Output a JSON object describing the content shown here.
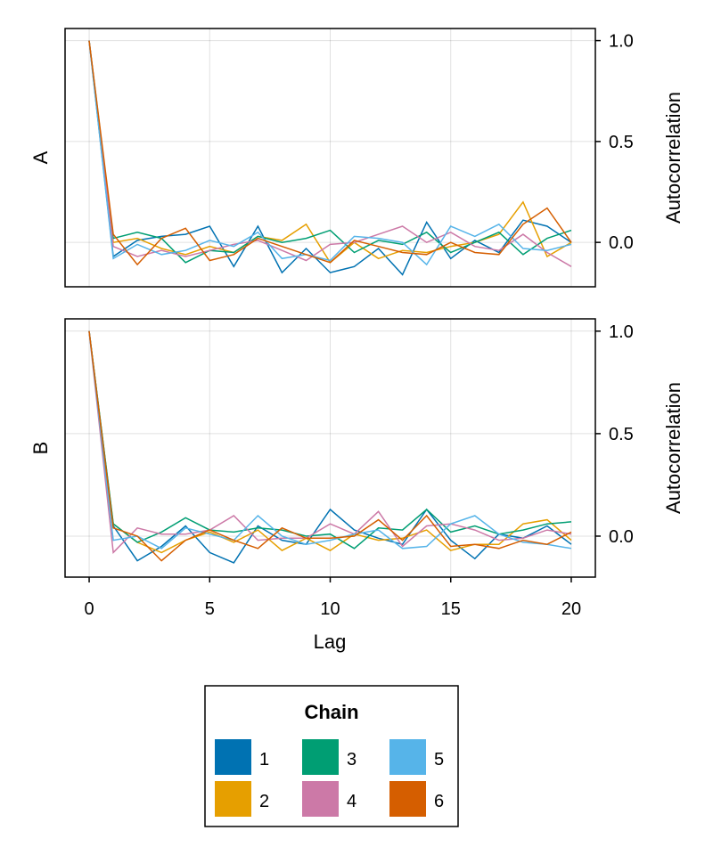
{
  "chart_data": {
    "type": "line",
    "xlabel": "Lag",
    "ylabel": "Autocorrelation",
    "xlim": [
      -1,
      21
    ],
    "xticks": [
      0,
      5,
      10,
      15,
      20
    ],
    "yticks": [
      0.0,
      0.5,
      1.0
    ],
    "ytick_labels": [
      "0.0",
      "0.5",
      "1.0"
    ],
    "grid": true,
    "x": [
      0,
      1,
      2,
      3,
      4,
      5,
      6,
      7,
      8,
      9,
      10,
      11,
      12,
      13,
      14,
      15,
      16,
      17,
      18,
      19,
      20
    ],
    "panels": [
      {
        "label": "A",
        "ylim": [
          -0.22,
          1.06
        ],
        "series": [
          {
            "name": "1",
            "color": "#0072B2",
            "values": [
              1.0,
              -0.07,
              0.01,
              0.03,
              0.04,
              0.08,
              -0.12,
              0.08,
              -0.15,
              -0.03,
              -0.15,
              -0.12,
              -0.03,
              -0.16,
              0.1,
              -0.08,
              0.01,
              -0.05,
              0.11,
              0.08,
              0.0
            ]
          },
          {
            "name": "2",
            "color": "#E69F00",
            "values": [
              1.0,
              0.0,
              0.02,
              -0.03,
              -0.06,
              -0.02,
              -0.05,
              0.03,
              0.01,
              0.09,
              -0.1,
              0.0,
              -0.08,
              -0.04,
              -0.05,
              -0.02,
              0.0,
              0.04,
              0.2,
              -0.07,
              0.0
            ]
          },
          {
            "name": "3",
            "color": "#009E73",
            "values": [
              1.0,
              0.02,
              0.05,
              0.02,
              -0.1,
              -0.04,
              -0.05,
              0.03,
              0.0,
              0.02,
              0.06,
              -0.05,
              0.01,
              -0.01,
              0.05,
              -0.05,
              0.0,
              0.05,
              -0.06,
              0.02,
              0.06
            ]
          },
          {
            "name": "4",
            "color": "#CC79A7",
            "values": [
              1.0,
              -0.02,
              -0.07,
              -0.04,
              -0.07,
              -0.04,
              -0.01,
              0.01,
              -0.04,
              -0.09,
              -0.01,
              0.0,
              0.04,
              0.08,
              0.0,
              0.05,
              -0.02,
              -0.04,
              0.04,
              -0.05,
              -0.12
            ]
          },
          {
            "name": "5",
            "color": "#56B4E9",
            "values": [
              1.0,
              -0.08,
              -0.01,
              -0.06,
              -0.04,
              0.01,
              -0.02,
              0.05,
              -0.08,
              -0.06,
              -0.09,
              0.03,
              0.02,
              0.0,
              -0.11,
              0.08,
              0.03,
              0.09,
              -0.03,
              -0.04,
              -0.01
            ]
          },
          {
            "name": "6",
            "color": "#D55E00",
            "values": [
              1.0,
              0.04,
              -0.11,
              0.02,
              0.07,
              -0.09,
              -0.06,
              0.02,
              -0.02,
              -0.06,
              -0.1,
              0.01,
              -0.02,
              -0.05,
              -0.06,
              0.0,
              -0.05,
              -0.06,
              0.09,
              0.17,
              0.0
            ]
          }
        ]
      },
      {
        "label": "B",
        "ylim": [
          -0.2,
          1.06
        ],
        "series": [
          {
            "name": "1",
            "color": "#0072B2",
            "values": [
              1.0,
              0.05,
              -0.12,
              -0.05,
              0.05,
              -0.08,
              -0.13,
              0.05,
              -0.02,
              -0.04,
              0.13,
              0.03,
              -0.01,
              -0.04,
              0.13,
              -0.02,
              -0.11,
              0.01,
              -0.01,
              0.05,
              -0.04
            ]
          },
          {
            "name": "2",
            "color": "#E69F00",
            "values": [
              1.0,
              0.06,
              -0.03,
              -0.08,
              -0.02,
              0.02,
              -0.03,
              0.03,
              -0.07,
              -0.01,
              -0.07,
              0.01,
              -0.02,
              -0.01,
              0.03,
              -0.07,
              -0.04,
              -0.04,
              0.06,
              0.08,
              -0.02
            ]
          },
          {
            "name": "3",
            "color": "#009E73",
            "values": [
              1.0,
              0.06,
              -0.03,
              0.02,
              0.09,
              0.03,
              0.02,
              0.04,
              0.03,
              0.0,
              0.01,
              -0.06,
              0.04,
              0.03,
              0.13,
              0.02,
              0.05,
              0.01,
              0.03,
              0.06,
              0.07
            ]
          },
          {
            "name": "4",
            "color": "#CC79A7",
            "values": [
              1.0,
              -0.08,
              0.04,
              0.01,
              0.01,
              0.03,
              0.1,
              -0.02,
              -0.01,
              -0.01,
              0.06,
              0.01,
              0.12,
              -0.05,
              0.05,
              0.06,
              0.03,
              -0.02,
              -0.01,
              0.03,
              0.01
            ]
          },
          {
            "name": "5",
            "color": "#56B4E9",
            "values": [
              1.0,
              -0.02,
              0.0,
              -0.06,
              0.04,
              0.01,
              -0.02,
              0.1,
              0.0,
              -0.04,
              -0.02,
              0.01,
              0.03,
              -0.06,
              -0.05,
              0.06,
              0.1,
              0.01,
              -0.03,
              -0.04,
              -0.06
            ]
          },
          {
            "name": "6",
            "color": "#D55E00",
            "values": [
              1.0,
              0.04,
              0.0,
              -0.12,
              -0.02,
              0.03,
              -0.02,
              -0.06,
              0.04,
              -0.01,
              -0.01,
              0.0,
              0.08,
              -0.02,
              0.1,
              -0.05,
              -0.04,
              -0.06,
              -0.02,
              -0.04,
              0.02
            ]
          }
        ]
      }
    ],
    "legend": {
      "title": "Chain",
      "placement": "bottom-center",
      "entries": [
        {
          "label": "1",
          "color": "#0072B2"
        },
        {
          "label": "2",
          "color": "#E69F00"
        },
        {
          "label": "3",
          "color": "#009E73"
        },
        {
          "label": "4",
          "color": "#CC79A7"
        },
        {
          "label": "5",
          "color": "#56B4E9"
        },
        {
          "label": "6",
          "color": "#D55E00"
        }
      ]
    }
  }
}
